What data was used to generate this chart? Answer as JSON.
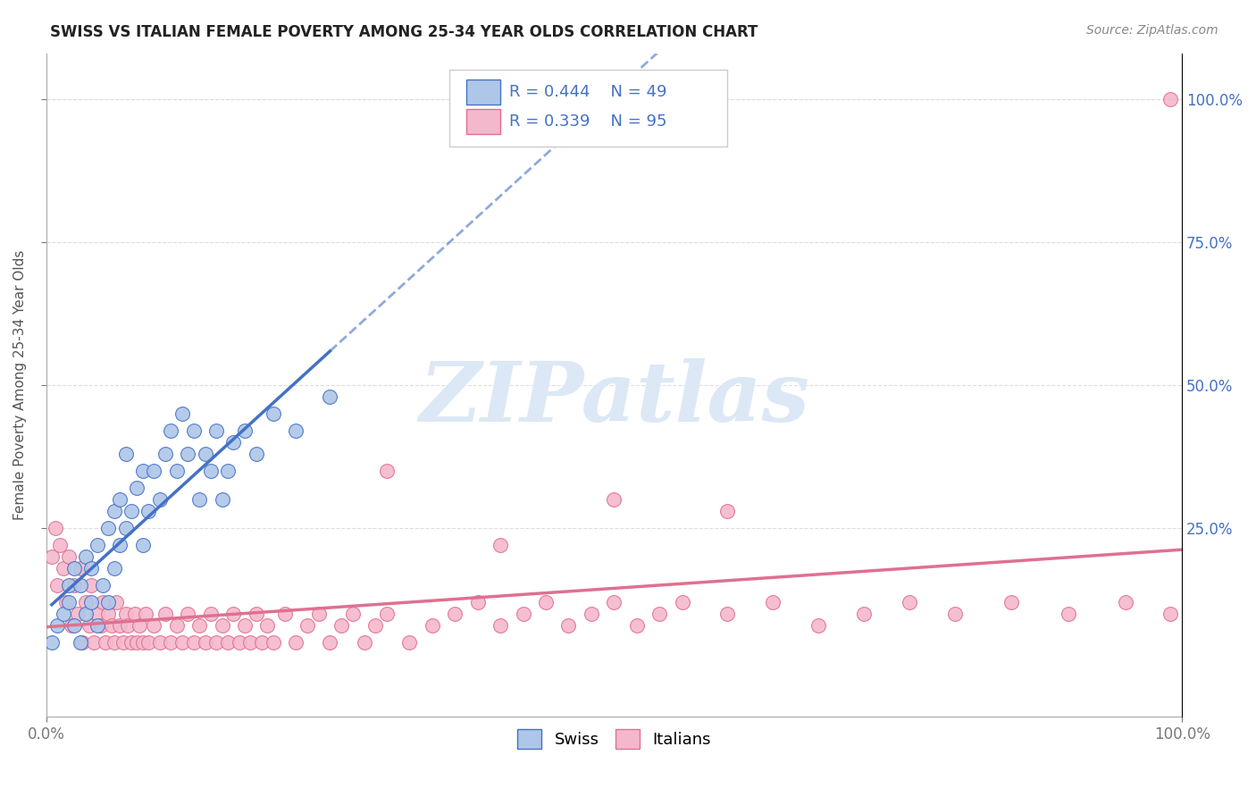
{
  "title": "SWISS VS ITALIAN FEMALE POVERTY AMONG 25-34 YEAR OLDS CORRELATION CHART",
  "source": "Source: ZipAtlas.com",
  "ylabel": "Female Poverty Among 25-34 Year Olds",
  "xlim": [
    0,
    1.0
  ],
  "ylim": [
    -0.08,
    1.08
  ],
  "swiss_color": "#aec6e8",
  "italian_color": "#f4b8cc",
  "swiss_line_color": "#4472c4",
  "italian_line_color": "#e07090",
  "swiss_R": 0.444,
  "swiss_N": 49,
  "italian_R": 0.339,
  "italian_N": 95,
  "background_color": "#ffffff",
  "watermark_text": "ZIPatlas",
  "watermark_color": "#dce8f5",
  "legend_swiss_label": "Swiss",
  "legend_italian_label": "Italians",
  "swiss_scatter_x": [
    0.005,
    0.01,
    0.015,
    0.02,
    0.02,
    0.025,
    0.025,
    0.03,
    0.03,
    0.035,
    0.035,
    0.04,
    0.04,
    0.045,
    0.045,
    0.05,
    0.055,
    0.055,
    0.06,
    0.06,
    0.065,
    0.065,
    0.07,
    0.07,
    0.075,
    0.08,
    0.085,
    0.085,
    0.09,
    0.095,
    0.1,
    0.105,
    0.11,
    0.115,
    0.12,
    0.125,
    0.13,
    0.135,
    0.14,
    0.145,
    0.15,
    0.155,
    0.16,
    0.165,
    0.175,
    0.185,
    0.2,
    0.22,
    0.25
  ],
  "swiss_scatter_y": [
    0.05,
    0.08,
    0.1,
    0.12,
    0.15,
    0.08,
    0.18,
    0.05,
    0.15,
    0.1,
    0.2,
    0.12,
    0.18,
    0.08,
    0.22,
    0.15,
    0.12,
    0.25,
    0.18,
    0.28,
    0.22,
    0.3,
    0.25,
    0.38,
    0.28,
    0.32,
    0.22,
    0.35,
    0.28,
    0.35,
    0.3,
    0.38,
    0.42,
    0.35,
    0.45,
    0.38,
    0.42,
    0.3,
    0.38,
    0.35,
    0.42,
    0.3,
    0.35,
    0.4,
    0.42,
    0.38,
    0.45,
    0.42,
    0.48
  ],
  "italian_scatter_x": [
    0.005,
    0.008,
    0.01,
    0.012,
    0.015,
    0.018,
    0.02,
    0.022,
    0.025,
    0.028,
    0.03,
    0.032,
    0.035,
    0.038,
    0.04,
    0.042,
    0.045,
    0.048,
    0.05,
    0.052,
    0.055,
    0.058,
    0.06,
    0.062,
    0.065,
    0.068,
    0.07,
    0.072,
    0.075,
    0.078,
    0.08,
    0.082,
    0.085,
    0.088,
    0.09,
    0.095,
    0.1,
    0.105,
    0.11,
    0.115,
    0.12,
    0.125,
    0.13,
    0.135,
    0.14,
    0.145,
    0.15,
    0.155,
    0.16,
    0.165,
    0.17,
    0.175,
    0.18,
    0.185,
    0.19,
    0.195,
    0.2,
    0.21,
    0.22,
    0.23,
    0.24,
    0.25,
    0.26,
    0.27,
    0.28,
    0.29,
    0.3,
    0.32,
    0.34,
    0.36,
    0.38,
    0.4,
    0.42,
    0.44,
    0.46,
    0.48,
    0.5,
    0.52,
    0.54,
    0.56,
    0.6,
    0.64,
    0.68,
    0.72,
    0.76,
    0.8,
    0.85,
    0.9,
    0.95,
    0.99,
    0.3,
    0.4,
    0.5,
    0.6,
    0.99
  ],
  "italian_scatter_y": [
    0.2,
    0.25,
    0.15,
    0.22,
    0.18,
    0.12,
    0.2,
    0.08,
    0.15,
    0.1,
    0.18,
    0.05,
    0.12,
    0.08,
    0.15,
    0.05,
    0.1,
    0.08,
    0.12,
    0.05,
    0.1,
    0.08,
    0.05,
    0.12,
    0.08,
    0.05,
    0.1,
    0.08,
    0.05,
    0.1,
    0.05,
    0.08,
    0.05,
    0.1,
    0.05,
    0.08,
    0.05,
    0.1,
    0.05,
    0.08,
    0.05,
    0.1,
    0.05,
    0.08,
    0.05,
    0.1,
    0.05,
    0.08,
    0.05,
    0.1,
    0.05,
    0.08,
    0.05,
    0.1,
    0.05,
    0.08,
    0.05,
    0.1,
    0.05,
    0.08,
    0.1,
    0.05,
    0.08,
    0.1,
    0.05,
    0.08,
    0.1,
    0.05,
    0.08,
    0.1,
    0.12,
    0.08,
    0.1,
    0.12,
    0.08,
    0.1,
    0.12,
    0.08,
    0.1,
    0.12,
    0.1,
    0.12,
    0.08,
    0.1,
    0.12,
    0.1,
    0.12,
    0.1,
    0.12,
    0.1,
    0.35,
    0.22,
    0.3,
    0.28,
    1.0
  ],
  "xtick_labels": [
    "0.0%",
    "100.0%"
  ],
  "xtick_positions": [
    0.0,
    1.0
  ],
  "ytick_labels": [
    "25.0%",
    "50.0%",
    "75.0%",
    "100.0%"
  ],
  "ytick_positions": [
    0.25,
    0.5,
    0.75,
    1.0
  ],
  "grid_color": "#dddddd",
  "tick_color": "#777777",
  "right_tick_color": "#4472c4"
}
